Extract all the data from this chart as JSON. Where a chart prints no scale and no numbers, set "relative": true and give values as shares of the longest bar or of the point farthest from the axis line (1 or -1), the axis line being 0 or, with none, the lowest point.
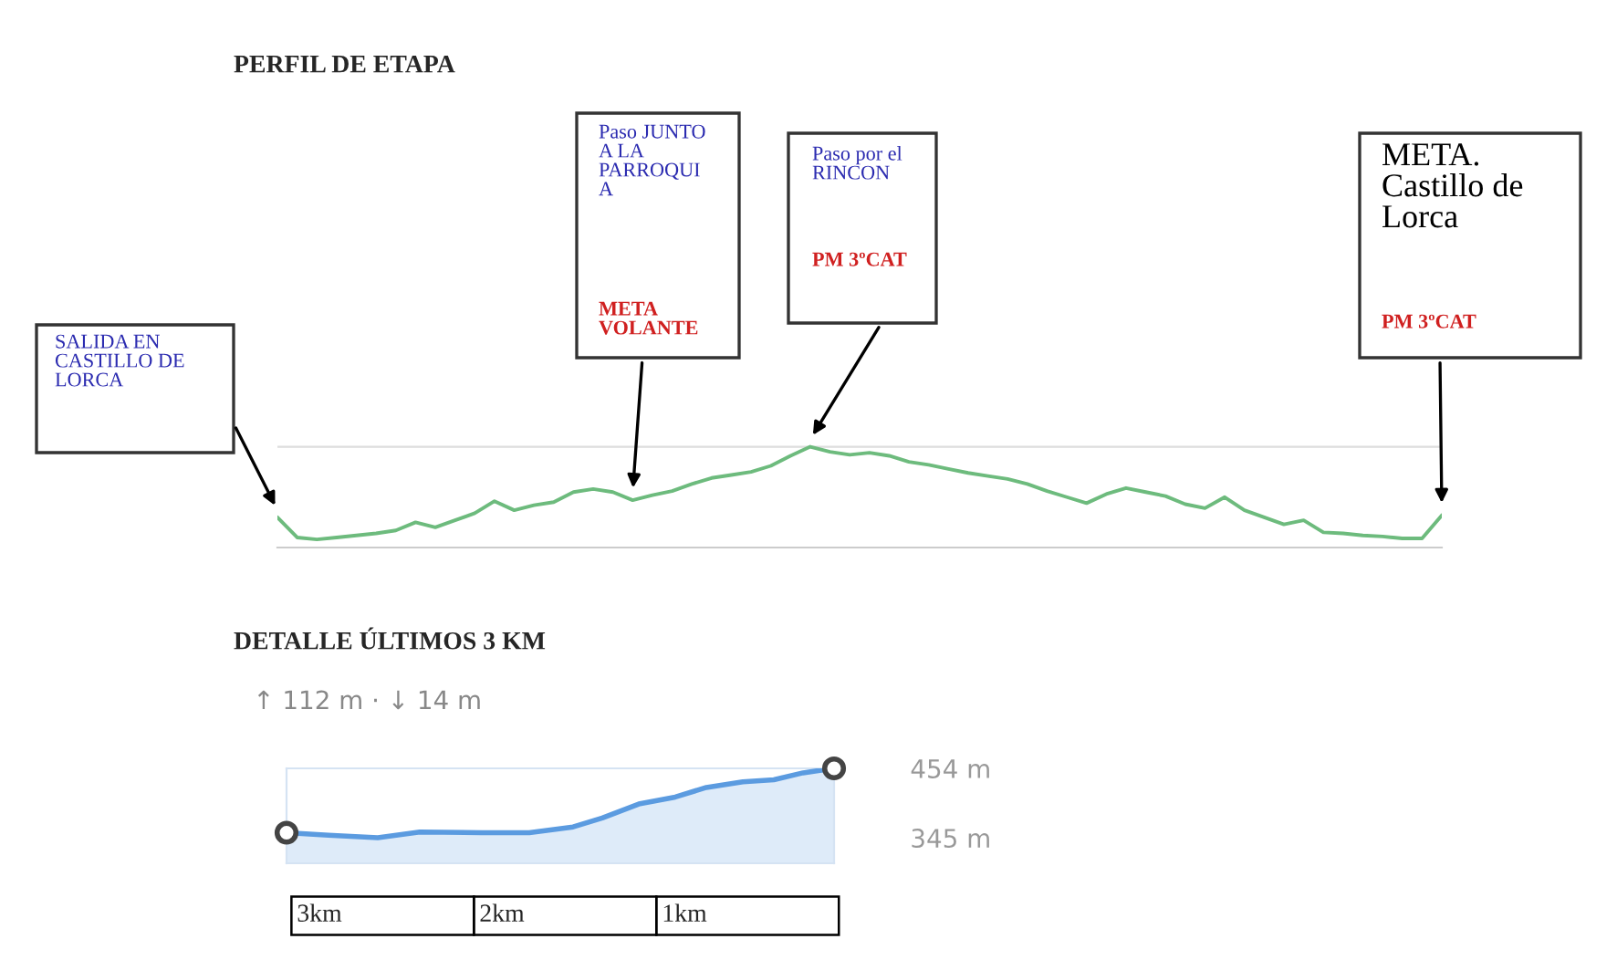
{
  "chart_data": [
    {
      "type": "line",
      "title": "PERFIL DE ETAPA",
      "relative": true,
      "grid": "y",
      "color": "#6dbb7d",
      "categories": [
        null,
        null,
        null,
        null,
        null,
        null,
        null,
        null,
        null,
        null,
        null,
        null,
        null,
        null,
        null,
        null,
        null,
        null,
        null,
        null,
        null,
        null,
        null,
        null,
        null,
        null,
        null,
        null,
        null,
        null,
        null,
        null,
        null,
        null,
        null,
        null,
        null,
        null,
        null,
        null,
        null,
        null,
        null,
        null,
        null,
        null,
        null,
        null,
        null,
        null,
        null,
        null,
        null,
        null,
        null,
        null,
        null,
        null,
        null,
        null
      ],
      "values": [
        0.3,
        0.1,
        0.08,
        0.1,
        0.12,
        0.14,
        0.17,
        0.25,
        0.2,
        0.27,
        0.34,
        0.46,
        0.37,
        0.42,
        0.45,
        0.55,
        0.58,
        0.55,
        0.47,
        0.52,
        0.56,
        0.63,
        0.69,
        0.72,
        0.75,
        0.81,
        0.91,
        1.0,
        0.95,
        0.92,
        0.94,
        0.91,
        0.85,
        0.82,
        0.78,
        0.74,
        0.71,
        0.68,
        0.63,
        0.56,
        0.5,
        0.44,
        0.53,
        0.59,
        0.55,
        0.51,
        0.43,
        0.39,
        0.5,
        0.37,
        0.3,
        0.23,
        0.27,
        0.15,
        0.14,
        0.12,
        0.11,
        0.09,
        0.09,
        0.32
      ],
      "annotations": [
        "SALIDA EN\nCASTILLO DE\nLORCA",
        "Paso JUNTO\nA LA\nPARROQUI\nA",
        "META\nVOLANTE",
        "Paso por el\nRINCON",
        "PM 3ºCAT",
        "META.\nCastillo de\nLorca",
        "PM 3ºCAT"
      ]
    },
    {
      "type": "area",
      "title": "DETALLE ÚLTIMOS 3 KM",
      "subtitle": "↑ 112 m · ↓ 14 m",
      "xlim": [
        3.18,
        0.18
      ],
      "ylim": [
        305,
        454
      ],
      "xticks": [
        {
          "value": 3,
          "label": "3km"
        },
        {
          "value": 2,
          "label": "2km"
        },
        {
          "value": 1,
          "label": "1km"
        }
      ],
      "yticks": [
        {
          "value": 454,
          "label": "454 m"
        },
        {
          "value": 345,
          "label": "345 m"
        }
      ],
      "series": [
        {
          "type": "area",
          "color": "#5b9be0",
          "x": [
            3.18,
            2.95,
            2.68,
            2.45,
            2.11,
            1.85,
            1.61,
            1.45,
            1.25,
            1.05,
            0.88,
            0.68,
            0.51,
            0.35,
            0.18
          ],
          "values": [
            353,
            349,
            345,
            354,
            353,
            353,
            362,
            376,
            398,
            409,
            424,
            433,
            436,
            447,
            454
          ]
        },
        {
          "type": "scatter",
          "color": "#444444",
          "marker": "circle",
          "x": [
            3.18,
            0.18
          ],
          "values": [
            353,
            454
          ]
        }
      ]
    }
  ]
}
